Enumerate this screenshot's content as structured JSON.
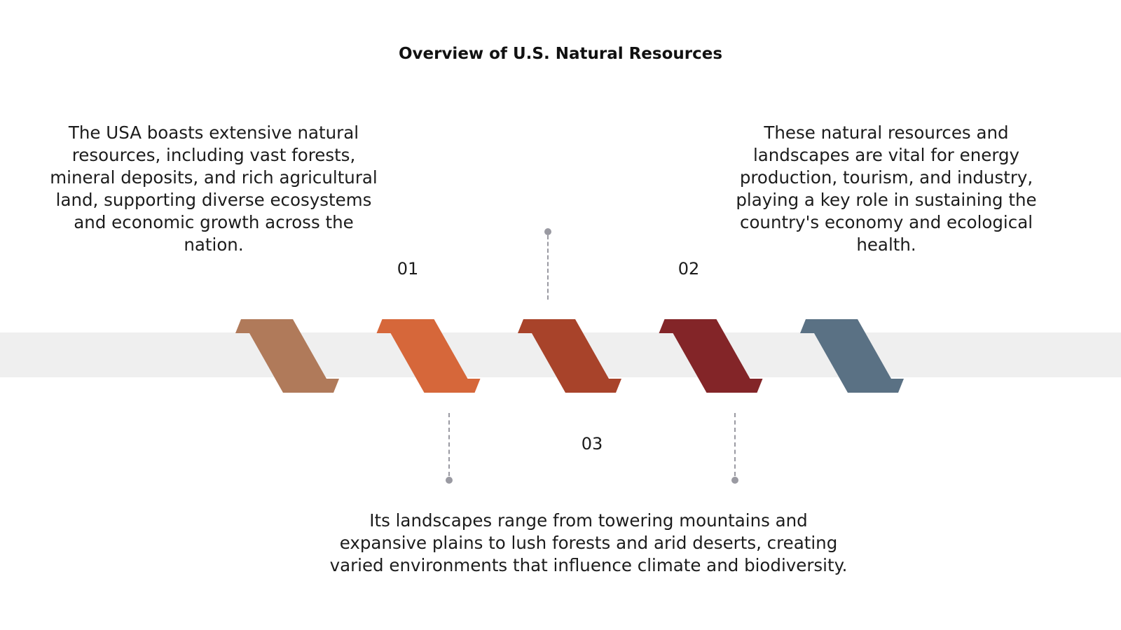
{
  "title": "Overview of U.S. Natural Resources",
  "steps": [
    {
      "color": "#b07a5a"
    },
    {
      "color": "#d6673a"
    },
    {
      "color": "#a8432a"
    },
    {
      "color": "#832528"
    },
    {
      "color": "#5a7184"
    }
  ],
  "labels": {
    "n1": "01",
    "n2": "02",
    "n3": "03"
  },
  "descriptions": {
    "d1": "The USA boasts extensive natural resources, including vast forests, mineral deposits, and rich agricultural land, supporting diverse ecosystems and economic growth across the nation.",
    "d2": "These natural resources and landscapes are vital for energy production, tourism, and industry, playing a key role in sustaining the country's economy and ecological health.",
    "d3": "Its landscapes range from towering mountains and expansive plains to lush forests and arid deserts, creating varied environments that influence climate and biodiversity."
  },
  "colors": {
    "band": "#efefef",
    "connector": "#9a9aa2"
  }
}
